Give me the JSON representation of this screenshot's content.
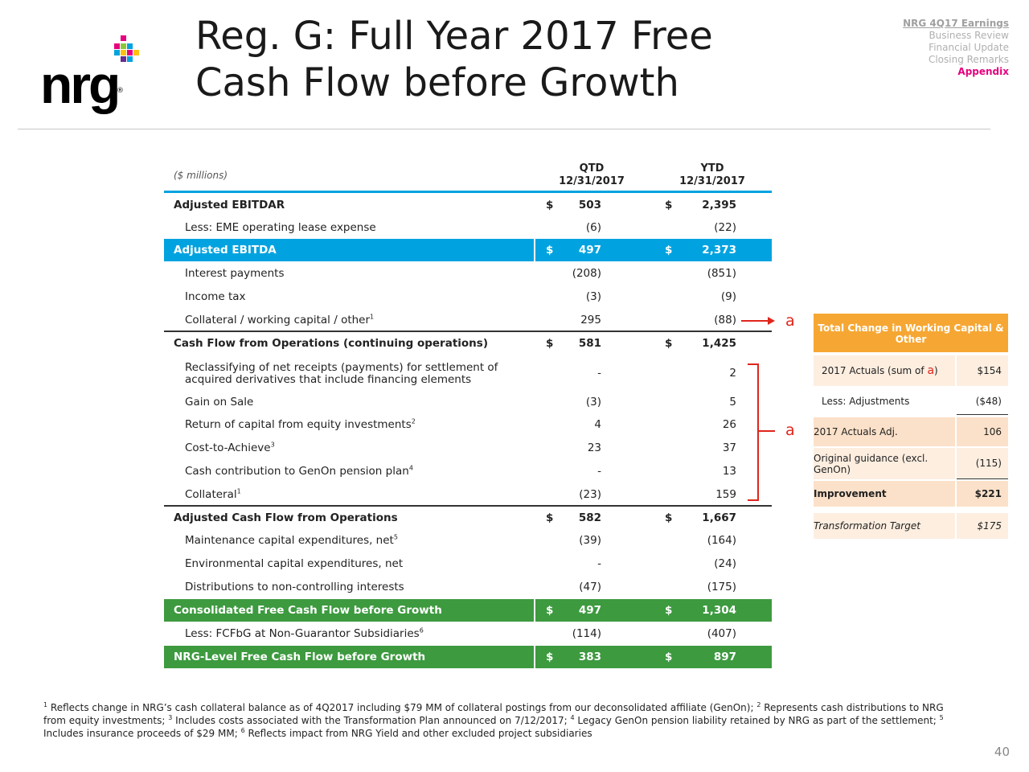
{
  "logo": {
    "text": "nrg",
    "mark": "®"
  },
  "title": {
    "line1": "Reg. G: Full Year 2017 Free",
    "line2": "Cash Flow before Growth"
  },
  "nav": {
    "header": "NRG 4Q17 Earnings",
    "items": [
      "Business Review",
      "Financial Update",
      "Closing Remarks"
    ],
    "active": "Appendix"
  },
  "table": {
    "units": "($ millions)",
    "col_qtd": {
      "line1": "QTD",
      "line2": "12/31/2017"
    },
    "col_ytd": {
      "line1": "YTD",
      "line2": "12/31/2017"
    },
    "rows": [
      {
        "label": "Adjusted EBITDAR",
        "dol1": "$",
        "qtd": "503",
        "dol2": "$",
        "ytd": "2,395"
      },
      {
        "label": "Less: EME operating lease expense",
        "qtd": "(6)",
        "ytd": "(22)"
      },
      {
        "label": "Adjusted EBITDA",
        "dol1": "$",
        "qtd": "497",
        "dol2": "$",
        "ytd": "2,373"
      },
      {
        "label": "Interest payments",
        "qtd": "(208)",
        "ytd": "(851)"
      },
      {
        "label": "Income tax",
        "qtd": "(3)",
        "ytd": "(9)"
      },
      {
        "label": "Collateral / working capital / other",
        "sup": "1",
        "qtd": "295",
        "ytd": "(88)"
      },
      {
        "label": "Cash Flow from Operations (continuing operations)",
        "dol1": "$",
        "qtd": "581",
        "dol2": "$",
        "ytd": "1,425"
      },
      {
        "label": "Reclassifying of net receipts (payments) for settlement of acquired derivatives that include financing elements",
        "qtd": "-",
        "ytd": "2"
      },
      {
        "label": "Gain on Sale",
        "qtd": "(3)",
        "ytd": "5"
      },
      {
        "label": "Return of capital from equity investments",
        "sup": "2",
        "qtd": "4",
        "ytd": "26"
      },
      {
        "label": "Cost-to-Achieve",
        "sup": "3",
        "qtd": "23",
        "ytd": "37"
      },
      {
        "label": "Cash contribution to GenOn pension plan",
        "sup": "4",
        "qtd": "-",
        "ytd": "13"
      },
      {
        "label": "Collateral",
        "sup": "1",
        "qtd": "(23)",
        "ytd": "159"
      },
      {
        "label": "Adjusted Cash Flow from Operations",
        "dol1": "$",
        "qtd": "582",
        "dol2": "$",
        "ytd": "1,667"
      },
      {
        "label": "Maintenance capital expenditures, net",
        "sup": "5",
        "qtd": "(39)",
        "ytd": "(164)"
      },
      {
        "label": "Environmental capital expenditures, net",
        "qtd": "-",
        "ytd": "(24)"
      },
      {
        "label": "Distributions to non-controlling interests",
        "qtd": "(47)",
        "ytd": "(175)"
      },
      {
        "label": "Consolidated Free Cash Flow before Growth",
        "dol1": "$",
        "qtd": "497",
        "dol2": "$",
        "ytd": "1,304"
      },
      {
        "label": "Less: FCFbG at Non-Guarantor Subsidiaries",
        "sup": "6",
        "qtd": "(114)",
        "ytd": "(407)"
      },
      {
        "label": "NRG-Level Free Cash Flow before Growth",
        "dol1": "$",
        "qtd": "383",
        "dol2": "$",
        "ytd": "897"
      }
    ]
  },
  "annotations": {
    "marker": "a"
  },
  "side_table": {
    "header": "Total Change in Working Capital & Other",
    "rows": [
      {
        "label_pre": "2017 Actuals (sum of ",
        "label_mark": "a",
        "label_post": ")",
        "value": "$154"
      },
      {
        "label": "Less: Adjustments",
        "value": "($48)"
      },
      {
        "label": "2017 Actuals Adj.",
        "value": "106"
      },
      {
        "label": "Original guidance (excl. GenOn)",
        "value": "(115)"
      },
      {
        "label": "Improvement",
        "value": "$221"
      },
      {
        "label": "Transformation Target",
        "value": "$175"
      }
    ]
  },
  "footnotes": {
    "n1": "1",
    "t1": " Reflects change in NRG’s cash collateral balance as of 4Q2017 including $79 MM of collateral postings from our deconsolidated affiliate (GenOn); ",
    "n2": "2",
    "t2": " Represents cash distributions to NRG from equity investments; ",
    "n3": "3",
    "t3": " Includes costs associated with the Transformation Plan announced on 7/12/2017; ",
    "n4": "4",
    "t4": " Legacy GenOn pension liability retained by NRG as part of the settlement; ",
    "n5": "5",
    "t5": " Includes insurance proceeds of $29 MM; ",
    "n6": "6",
    "t6": " Reflects impact from NRG Yield and other excluded project subsidiaries"
  },
  "page_number": "40",
  "colors": {
    "blue": "#00a3e0",
    "green": "#3d9a3f",
    "orange": "#f6a733",
    "red": "#e0251b",
    "magenta": "#e6007e"
  }
}
